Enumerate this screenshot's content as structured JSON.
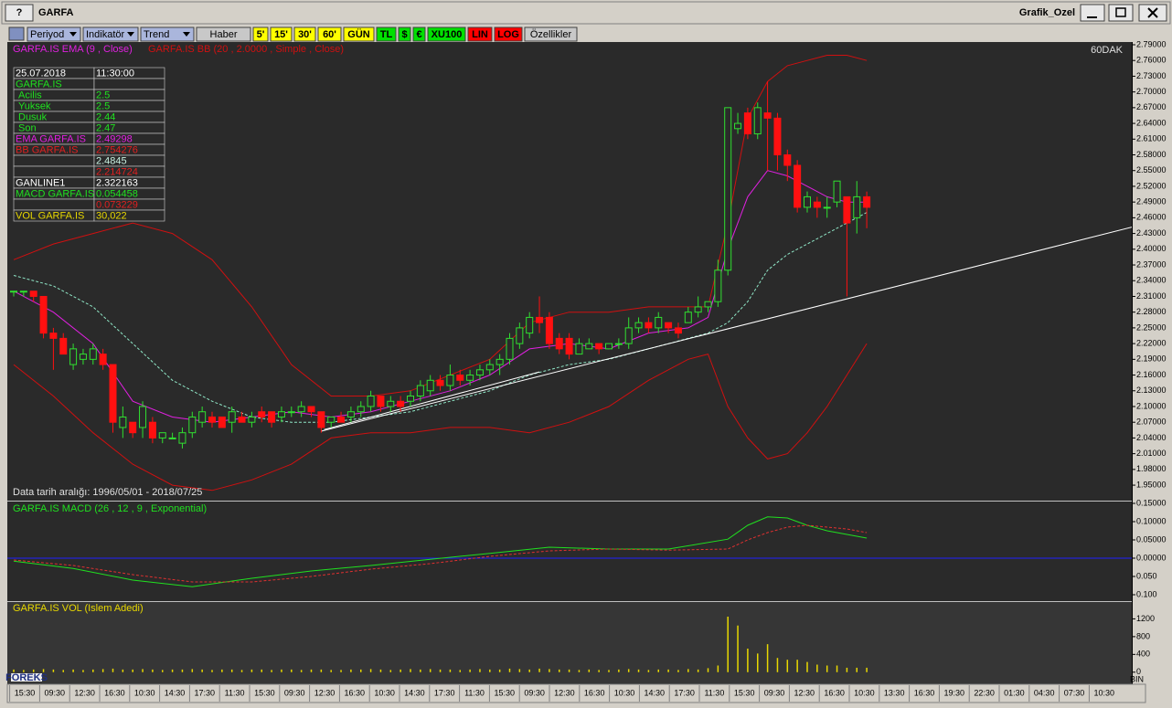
{
  "window": {
    "title": "GARFA",
    "help": "?",
    "layout_name": "Grafik_Ozel"
  },
  "toolbar": [
    {
      "label": "Periyod",
      "bg": "#aab6dc",
      "color": "#000000",
      "dropdown": true
    },
    {
      "label": "Indikatör",
      "bg": "#aab6dc",
      "color": "#000000",
      "dropdown": true
    },
    {
      "label": "Trend",
      "bg": "#aab6dc",
      "color": "#000000",
      "dropdown": true
    },
    {
      "label": "Haber",
      "bg": "#c8c8c8",
      "color": "#000000",
      "dropdown": false
    },
    {
      "label": "5'",
      "bg": "#ffff00",
      "color": "#000000",
      "dropdown": false
    },
    {
      "label": "15'",
      "bg": "#ffff00",
      "color": "#000000",
      "dropdown": false
    },
    {
      "label": "30'",
      "bg": "#ffff00",
      "color": "#000000",
      "dropdown": false
    },
    {
      "label": "60'",
      "bg": "#ffff00",
      "color": "#000000",
      "dropdown": false
    },
    {
      "label": "GÜN",
      "bg": "#ffff00",
      "color": "#000000",
      "dropdown": false
    },
    {
      "label": "TL",
      "bg": "#00e000",
      "color": "#000000",
      "dropdown": false
    },
    {
      "label": "$",
      "bg": "#00e000",
      "color": "#000000",
      "dropdown": false
    },
    {
      "label": "€",
      "bg": "#00e000",
      "color": "#000000",
      "dropdown": false
    },
    {
      "label": "XU100",
      "bg": "#00e000",
      "color": "#000000",
      "dropdown": false
    },
    {
      "label": "LIN",
      "bg": "#ff0000",
      "color": "#000000",
      "dropdown": false
    },
    {
      "label": "LOG",
      "bg": "#ff0000",
      "color": "#000000",
      "dropdown": false
    },
    {
      "label": "Özellikler",
      "bg": "#c8c8c8",
      "color": "#000000",
      "dropdown": false
    }
  ],
  "info_panel": [
    {
      "label": "25.07.2018",
      "value": "11:30:00",
      "color": "#ffffff"
    },
    {
      "label": "GARFA.IS",
      "color": "#20e020"
    },
    {
      "label": "Acilis",
      "value": "2.5",
      "color": "#20e020"
    },
    {
      "label": "Yuksek",
      "value": "2.5",
      "color": "#20e020"
    },
    {
      "label": "Dusuk",
      "value": "2.44",
      "color": "#20e020"
    },
    {
      "label": "Son",
      "value": "2.47",
      "color": "#20e020"
    },
    {
      "label": "EMA GARFA.IS",
      "value": "2.49298",
      "color": "#e020e0"
    },
    {
      "label": "BB GARFA.IS",
      "value": "2.754276",
      "color": "#e02020"
    },
    {
      "value": "2.4845",
      "color": "#c8f0e0"
    },
    {
      "value": "2.214724",
      "color": "#e02020"
    },
    {
      "label": "GANLINE1",
      "value": "2.322163",
      "color": "#ffffff"
    },
    {
      "label": "MACD GARFA.IS",
      "value": "0.054458",
      "color": "#20e020"
    },
    {
      "value": "0.073229",
      "color": "#e02020"
    },
    {
      "label": "VOL GARFA.IS",
      "value": "30,022",
      "color": "#e8d800"
    }
  ],
  "time_axis": [
    "15:30",
    "09:30",
    "12:30",
    "16:30",
    "10:30",
    "14:30",
    "17:30",
    "11:30",
    "15:30",
    "09:30",
    "12:30",
    "16:30",
    "10:30",
    "14:30",
    "17:30",
    "11:30",
    "15:30",
    "09:30",
    "12:30",
    "16:30",
    "10:30",
    "14:30",
    "17:30",
    "11:30",
    "15:30",
    "09:30",
    "12:30",
    "16:30",
    "10:30",
    "13:30",
    "16:30",
    "19:30",
    "22:30",
    "01:30",
    "04:30",
    "07:30",
    "10:30"
  ],
  "chart_data": [
    {
      "type": "candlestick",
      "period": "60DAK",
      "note": "Data tarih aralığı: 1996/05/01 - 2018/07/25",
      "up_color": "#30e030",
      "down_color": "#ff1010",
      "open": [
        2.32,
        2.32,
        2.32,
        2.31,
        2.24,
        2.23,
        2.18,
        2.19,
        2.19,
        2.2,
        2.18,
        2.06,
        2.07,
        2.06,
        2.07,
        2.04,
        2.04,
        2.03,
        2.05,
        2.07,
        2.08,
        2.08,
        2.07,
        2.08,
        2.07,
        2.09,
        2.09,
        2.08,
        2.09,
        2.09,
        2.1,
        2.09,
        2.07,
        2.08,
        2.08,
        2.09,
        2.1,
        2.12,
        2.1,
        2.11,
        2.11,
        2.12,
        2.13,
        2.15,
        2.14,
        2.16,
        2.15,
        2.16,
        2.17,
        2.18,
        2.19,
        2.22,
        2.24,
        2.27,
        2.27,
        2.23,
        2.23,
        2.2,
        2.21,
        2.22,
        2.21,
        2.22,
        2.22,
        2.25,
        2.26,
        2.25,
        2.26,
        2.25,
        2.26,
        2.28,
        2.29,
        2.3,
        2.36,
        2.63,
        2.66,
        2.62,
        2.66,
        2.65,
        2.58,
        2.56,
        2.48,
        2.49,
        2.48,
        2.49,
        2.5,
        2.46,
        2.5
      ],
      "high": [
        2.32,
        2.32,
        2.32,
        2.31,
        2.25,
        2.24,
        2.22,
        2.21,
        2.22,
        2.21,
        2.18,
        2.1,
        2.07,
        2.11,
        2.08,
        2.05,
        2.05,
        2.06,
        2.09,
        2.1,
        2.09,
        2.08,
        2.1,
        2.09,
        2.09,
        2.1,
        2.09,
        2.1,
        2.1,
        2.11,
        2.1,
        2.09,
        2.08,
        2.09,
        2.1,
        2.11,
        2.13,
        2.12,
        2.12,
        2.12,
        2.13,
        2.15,
        2.16,
        2.16,
        2.18,
        2.17,
        2.17,
        2.18,
        2.19,
        2.2,
        2.24,
        2.26,
        2.28,
        2.31,
        2.28,
        2.24,
        2.24,
        2.23,
        2.23,
        2.22,
        2.22,
        2.23,
        2.27,
        2.27,
        2.27,
        2.28,
        2.26,
        2.26,
        2.29,
        2.31,
        2.3,
        2.38,
        2.67,
        2.66,
        2.67,
        2.68,
        2.72,
        2.66,
        2.59,
        2.57,
        2.51,
        2.5,
        2.5,
        2.53,
        2.5,
        2.53,
        2.51
      ],
      "low": [
        2.31,
        2.31,
        2.3,
        2.23,
        2.17,
        2.2,
        2.17,
        2.18,
        2.18,
        2.17,
        2.05,
        2.04,
        2.04,
        2.04,
        2.03,
        2.03,
        2.04,
        2.02,
        2.04,
        2.06,
        2.06,
        2.06,
        2.05,
        2.07,
        2.06,
        2.07,
        2.06,
        2.07,
        2.08,
        2.08,
        2.08,
        2.05,
        2.06,
        2.07,
        2.07,
        2.08,
        2.09,
        2.09,
        2.09,
        2.09,
        2.1,
        2.11,
        2.12,
        2.13,
        2.13,
        2.14,
        2.14,
        2.15,
        2.16,
        2.16,
        2.18,
        2.21,
        2.23,
        2.24,
        2.21,
        2.2,
        2.19,
        2.2,
        2.21,
        2.2,
        2.21,
        2.21,
        2.21,
        2.24,
        2.24,
        2.24,
        2.24,
        2.23,
        2.26,
        2.27,
        2.28,
        2.29,
        2.35,
        2.62,
        2.61,
        2.61,
        2.55,
        2.55,
        2.53,
        2.47,
        2.47,
        2.46,
        2.46,
        2.48,
        2.31,
        2.43,
        2.44
      ],
      "close": [
        2.32,
        2.32,
        2.31,
        2.24,
        2.23,
        2.2,
        2.21,
        2.2,
        2.21,
        2.18,
        2.07,
        2.08,
        2.05,
        2.1,
        2.04,
        2.05,
        2.04,
        2.05,
        2.08,
        2.09,
        2.07,
        2.06,
        2.09,
        2.07,
        2.08,
        2.08,
        2.07,
        2.09,
        2.09,
        2.1,
        2.09,
        2.06,
        2.08,
        2.07,
        2.09,
        2.1,
        2.12,
        2.1,
        2.11,
        2.1,
        2.12,
        2.14,
        2.15,
        2.14,
        2.16,
        2.15,
        2.16,
        2.17,
        2.18,
        2.19,
        2.23,
        2.25,
        2.27,
        2.26,
        2.22,
        2.21,
        2.2,
        2.22,
        2.22,
        2.21,
        2.22,
        2.22,
        2.25,
        2.26,
        2.25,
        2.27,
        2.25,
        2.24,
        2.28,
        2.29,
        2.3,
        2.36,
        2.67,
        2.64,
        2.62,
        2.67,
        2.65,
        2.58,
        2.56,
        2.48,
        2.5,
        2.48,
        2.48,
        2.53,
        2.45,
        2.5,
        2.48
      ],
      "series": [
        {
          "name": "GARFA.IS EMA (9 , Close)",
          "color": "#e020e0",
          "x": [
            0,
            4,
            8,
            12,
            16,
            20,
            24,
            28,
            32,
            36,
            40,
            44,
            48,
            52,
            56,
            60,
            64,
            68,
            70,
            72,
            74,
            76,
            78,
            80,
            82,
            84,
            86
          ],
          "values": [
            2.32,
            2.28,
            2.22,
            2.11,
            2.08,
            2.07,
            2.08,
            2.09,
            2.08,
            2.09,
            2.11,
            2.13,
            2.16,
            2.21,
            2.22,
            2.21,
            2.24,
            2.25,
            2.27,
            2.4,
            2.5,
            2.55,
            2.54,
            2.52,
            2.5,
            2.49,
            2.49
          ]
        },
        {
          "name": "GARFA.IS BB (20 , 2.0000 , Simple , Close)",
          "color": "#d01010",
          "middle_color": "#90e8c8",
          "x": [
            0,
            4,
            8,
            12,
            16,
            20,
            24,
            28,
            32,
            36,
            40,
            44,
            48,
            52,
            56,
            60,
            64,
            68,
            70,
            72,
            74,
            76,
            78,
            80,
            82,
            84,
            86
          ],
          "upper": [
            2.38,
            2.41,
            2.43,
            2.45,
            2.43,
            2.38,
            2.29,
            2.18,
            2.12,
            2.12,
            2.13,
            2.16,
            2.19,
            2.26,
            2.28,
            2.28,
            2.29,
            2.29,
            2.29,
            2.45,
            2.65,
            2.72,
            2.75,
            2.76,
            2.77,
            2.77,
            2.76
          ],
          "middle": [
            2.35,
            2.33,
            2.29,
            2.22,
            2.15,
            2.11,
            2.08,
            2.07,
            2.07,
            2.08,
            2.09,
            2.11,
            2.13,
            2.16,
            2.18,
            2.19,
            2.21,
            2.23,
            2.24,
            2.26,
            2.3,
            2.36,
            2.39,
            2.41,
            2.43,
            2.45,
            2.47
          ],
          "lower": [
            2.18,
            2.12,
            2.05,
            1.99,
            1.95,
            1.94,
            1.96,
            1.99,
            2.04,
            2.05,
            2.05,
            2.06,
            2.06,
            2.05,
            2.07,
            2.1,
            2.15,
            2.19,
            2.2,
            2.1,
            2.04,
            2.0,
            2.01,
            2.05,
            2.1,
            2.16,
            2.22
          ]
        }
      ],
      "trendlines": [
        {
          "color": "#ffffff",
          "x": [
            31,
            115
          ],
          "values": [
            2.053,
            2.453
          ]
        },
        {
          "color": "#ffffff",
          "x": [
            31.3,
            53
          ],
          "values": [
            2.056,
            2.166
          ]
        }
      ],
      "ylim": [
        1.9205,
        2.7952
      ],
      "yticks": [
        {
          "value": 2.79,
          "label": "2.79000"
        },
        {
          "value": 2.76,
          "label": "2.76000"
        },
        {
          "value": 2.73,
          "label": "2.73000"
        },
        {
          "value": 2.7,
          "label": "2.70000"
        },
        {
          "value": 2.67,
          "label": "2.67000"
        },
        {
          "value": 2.64,
          "label": "2.64000"
        },
        {
          "value": 2.61,
          "label": "2.61000"
        },
        {
          "value": 2.58,
          "label": "2.58000"
        },
        {
          "value": 2.55,
          "label": "2.55000"
        },
        {
          "value": 2.52,
          "label": "2.52000"
        },
        {
          "value": 2.49,
          "label": "2.49000"
        },
        {
          "value": 2.46,
          "label": "2.46000"
        },
        {
          "value": 2.43,
          "label": "2.43000"
        },
        {
          "value": 2.4,
          "label": "2.40000"
        },
        {
          "value": 2.37,
          "label": "2.37000"
        },
        {
          "value": 2.34,
          "label": "2.34000"
        },
        {
          "value": 2.31,
          "label": "2.31000"
        },
        {
          "value": 2.28,
          "label": "2.28000"
        },
        {
          "value": 2.25,
          "label": "2.25000"
        },
        {
          "value": 2.22,
          "label": "2.22000"
        },
        {
          "value": 2.19,
          "label": "2.19000"
        },
        {
          "value": 2.16,
          "label": "2.16000"
        },
        {
          "value": 2.13,
          "label": "2.13000"
        },
        {
          "value": 2.1,
          "label": "2.10000"
        },
        {
          "value": 2.07,
          "label": "2.07000"
        },
        {
          "value": 2.04,
          "label": "2.04000"
        },
        {
          "value": 2.01,
          "label": "2.01000"
        },
        {
          "value": 1.98,
          "label": "1.98000"
        },
        {
          "value": 1.95,
          "label": "1.95000"
        }
      ]
    },
    {
      "type": "line",
      "title": "GARFA.IS MACD (26 , 12 , 9 , Exponential)",
      "title_color": "#20e020",
      "zero_color": "#2020ff",
      "series": [
        {
          "color": "#20e020",
          "dashed": false,
          "x": [
            0,
            6,
            12,
            18,
            24,
            30,
            36,
            42,
            48,
            54,
            60,
            66,
            72,
            74,
            76,
            78,
            80,
            82,
            84,
            86
          ],
          "values": [
            -0.008,
            -0.028,
            -0.06,
            -0.078,
            -0.055,
            -0.035,
            -0.02,
            -0.003,
            0.013,
            0.03,
            0.025,
            0.025,
            0.052,
            0.09,
            0.113,
            0.11,
            0.09,
            0.075,
            0.065,
            0.055
          ]
        },
        {
          "color": "#e03030",
          "dashed": true,
          "x": [
            0,
            6,
            12,
            18,
            24,
            30,
            36,
            42,
            48,
            54,
            60,
            66,
            72,
            74,
            76,
            78,
            80,
            82,
            84,
            86
          ],
          "values": [
            -0.005,
            -0.02,
            -0.045,
            -0.065,
            -0.065,
            -0.05,
            -0.03,
            -0.015,
            0.005,
            0.02,
            0.025,
            0.022,
            0.025,
            0.05,
            0.07,
            0.085,
            0.09,
            0.085,
            0.08,
            0.07
          ]
        }
      ],
      "ylim": [
        -0.1175,
        0.155
      ],
      "yticks": [
        {
          "value": 0.15,
          "label": "0.15000"
        },
        {
          "value": 0.1,
          "label": "0.10000"
        },
        {
          "value": 0.05,
          "label": "0.05000"
        },
        {
          "value": 0,
          "label": "0.00000"
        },
        {
          "value": -0.05,
          "label": "0.050"
        },
        {
          "value": -0.1,
          "label": "0.100"
        }
      ]
    },
    {
      "type": "bar",
      "title": "GARFA.IS VOL (Islem Adedi)",
      "color": "#e8d800",
      "unit": "BIN",
      "logo": "FOREKS",
      "values": [
        60,
        50,
        60,
        70,
        60,
        50,
        60,
        50,
        60,
        70,
        80,
        60,
        60,
        70,
        60,
        50,
        60,
        60,
        70,
        60,
        50,
        60,
        60,
        50,
        60,
        60,
        50,
        60,
        60,
        50,
        60,
        60,
        50,
        50,
        60,
        60,
        70,
        60,
        50,
        60,
        70,
        60,
        70,
        60,
        60,
        50,
        60,
        70,
        60,
        60,
        80,
        70,
        60,
        80,
        70,
        60,
        60,
        50,
        60,
        50,
        50,
        60,
        70,
        60,
        50,
        60,
        60,
        50,
        70,
        60,
        90,
        150,
        1250,
        1050,
        530,
        420,
        630,
        320,
        280,
        280,
        230,
        170,
        150,
        150,
        100,
        100,
        100
      ],
      "ylim": [
        -210,
        1579
      ],
      "yticks": [
        1200,
        800,
        400,
        0
      ]
    }
  ]
}
